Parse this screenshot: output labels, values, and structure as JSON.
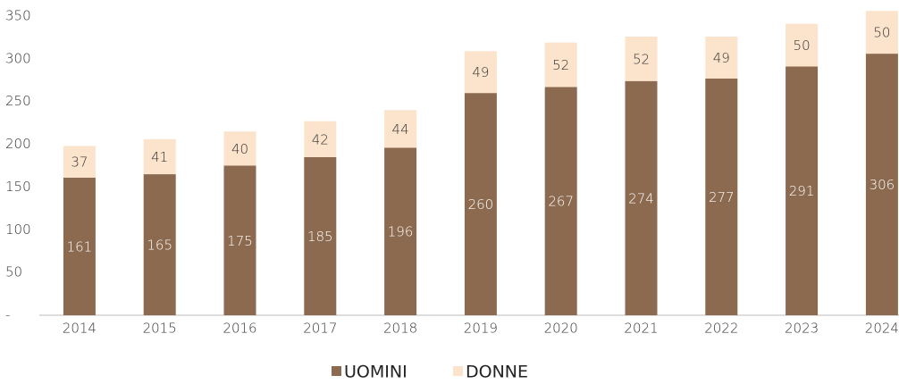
{
  "chart_data": {
    "type": "stacked_bar",
    "categories": [
      "2014",
      "2015",
      "2016",
      "2017",
      "2018",
      "2019",
      "2020",
      "2021",
      "2022",
      "2023",
      "2024"
    ],
    "series": [
      {
        "name": "UOMINI",
        "color": "#8b6a4f",
        "values": [
          161,
          165,
          175,
          185,
          196,
          260,
          267,
          274,
          277,
          291,
          306
        ]
      },
      {
        "name": "DONNE",
        "color": "#fbe3cc",
        "values": [
          37,
          41,
          40,
          42,
          44,
          49,
          52,
          52,
          49,
          50,
          50
        ]
      }
    ],
    "ylim": [
      0,
      350
    ],
    "yticks": [
      {
        "value": 0,
        "label": "-"
      },
      50,
      100,
      150,
      200,
      250,
      300,
      350
    ],
    "legend": "bottom"
  }
}
